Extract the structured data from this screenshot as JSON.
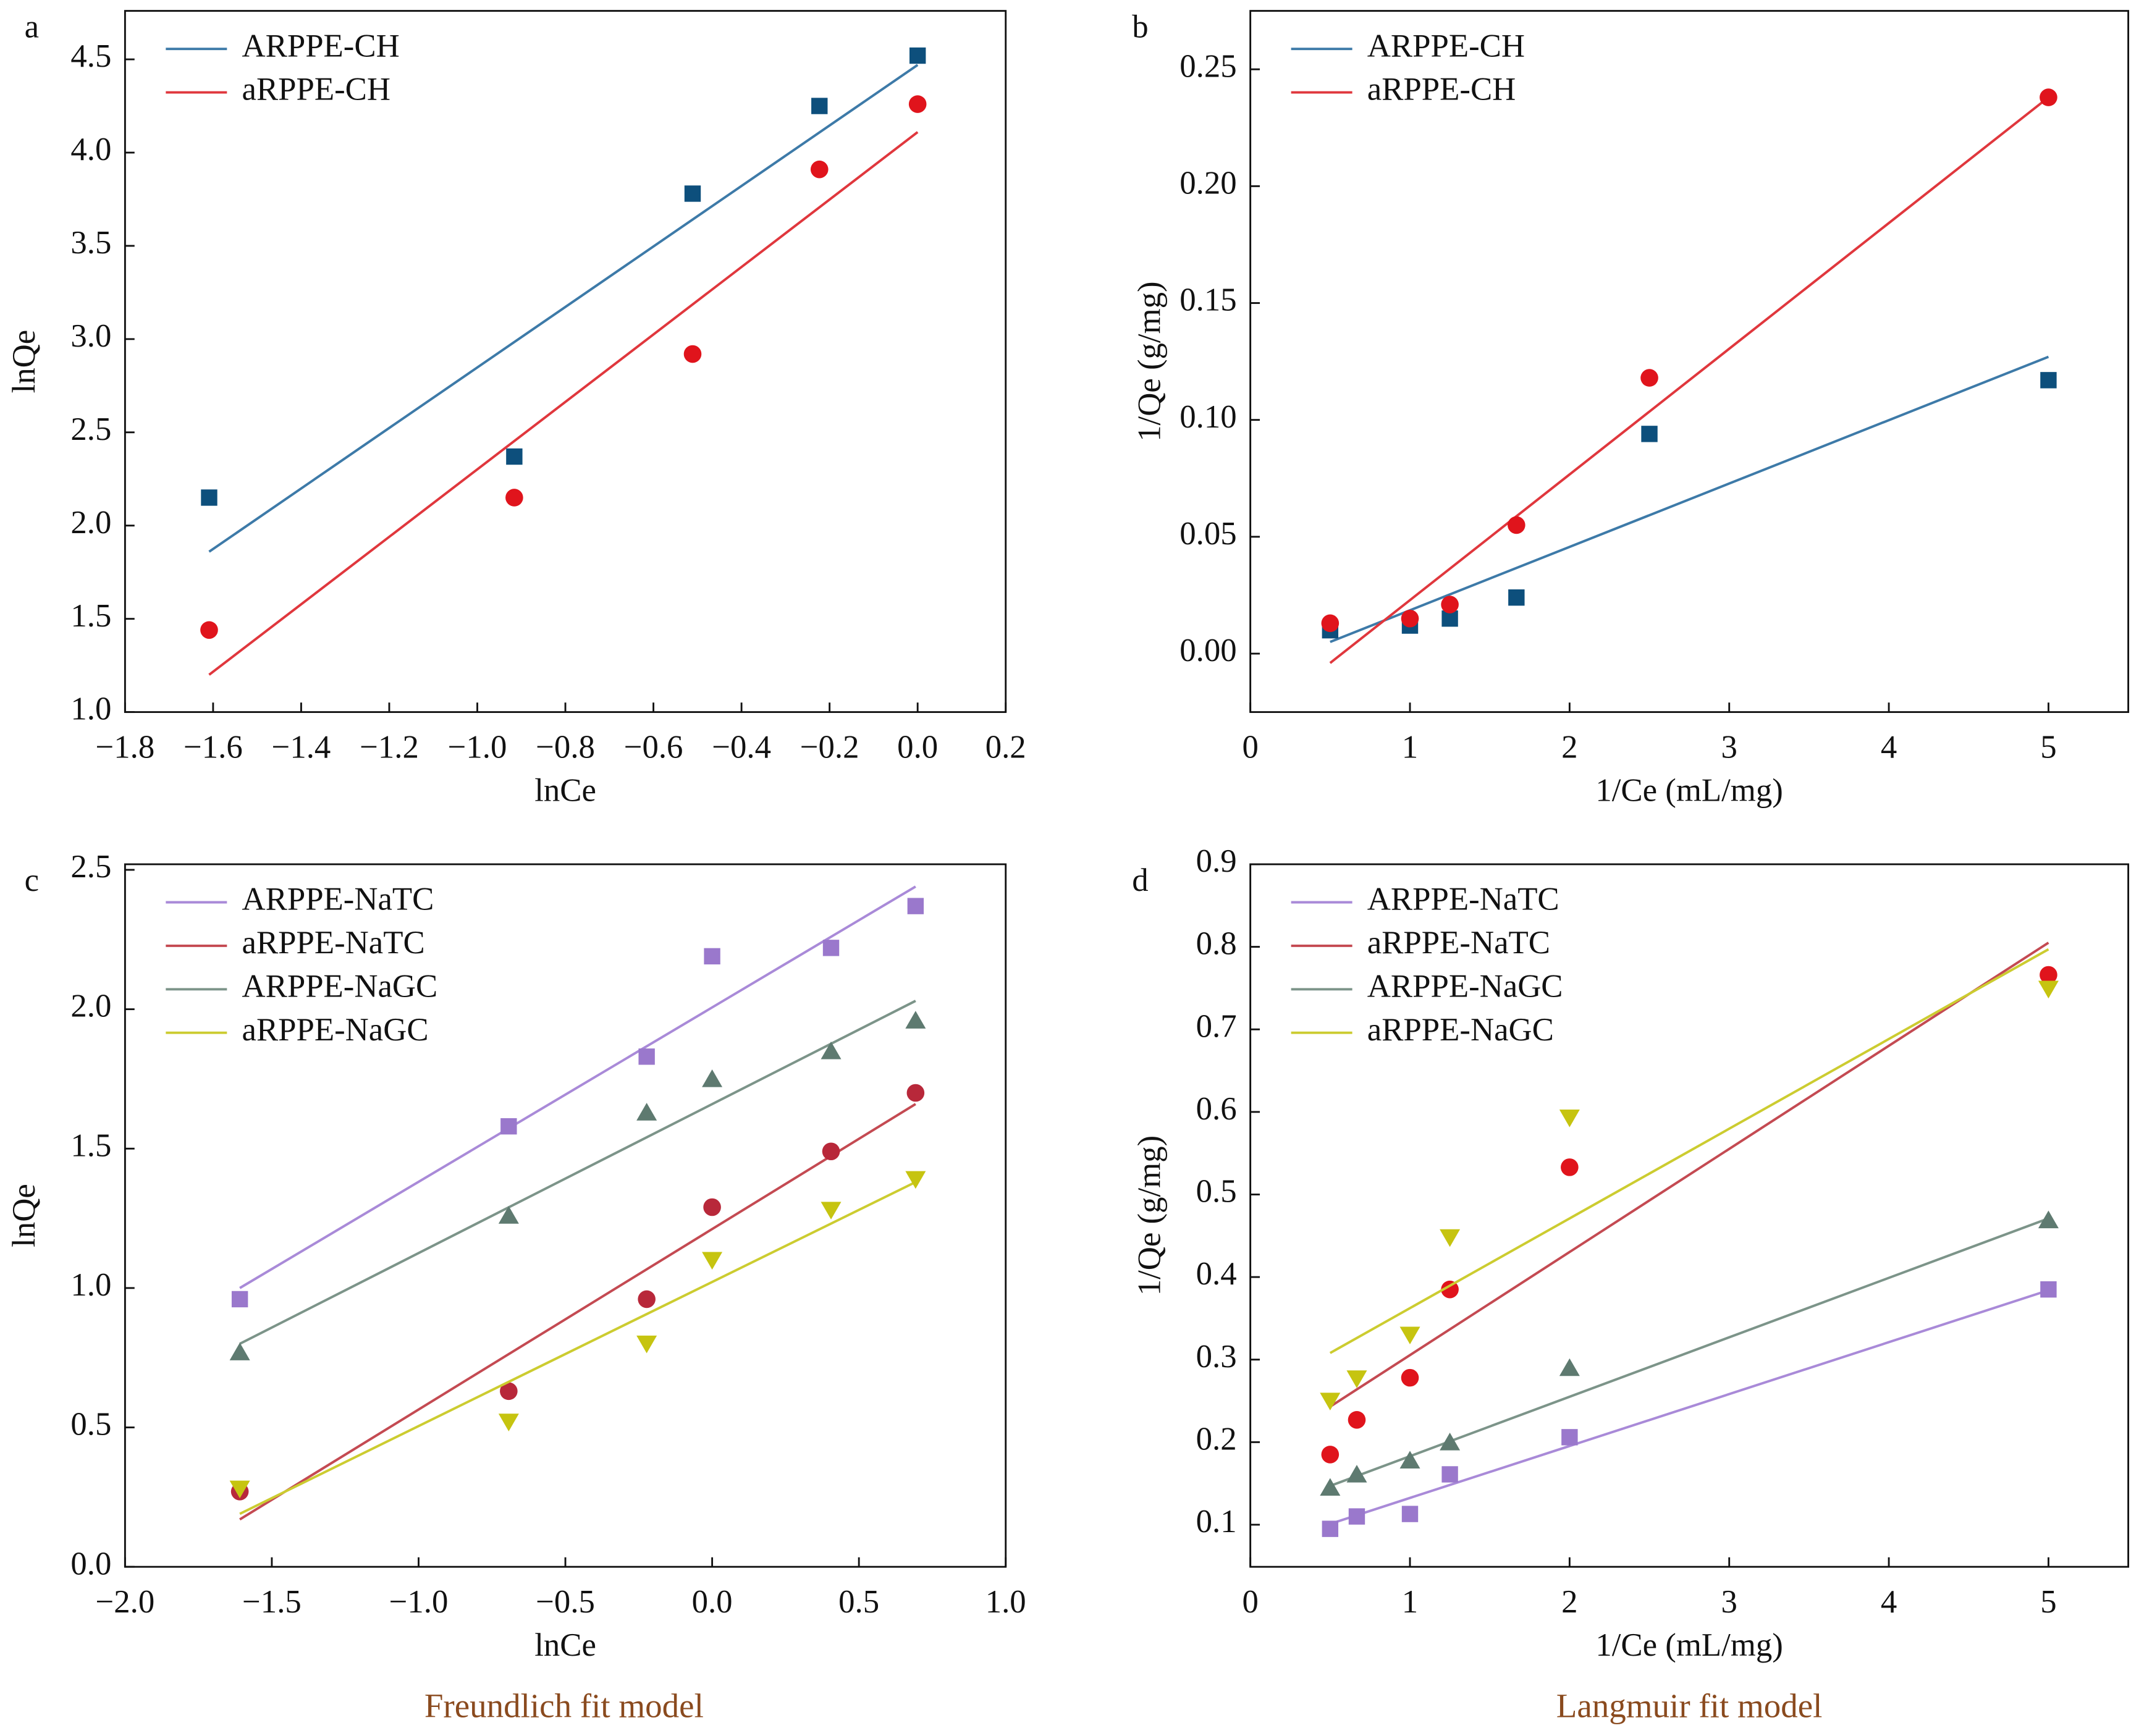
{
  "chart_data": [
    {
      "type": "scatter",
      "label": "a",
      "xlabel": "lnCe",
      "ylabel": "lnQe",
      "xlim": [
        -1.8,
        0.2
      ],
      "ylim": [
        1.0,
        4.76
      ],
      "xticks": [
        {
          "value": -1.8,
          "label": "−1.8"
        },
        {
          "value": -1.6,
          "label": "−1.6"
        },
        {
          "value": -1.4,
          "label": "−1.4"
        },
        {
          "value": -1.2,
          "label": "−1.2"
        },
        {
          "value": -1.0,
          "label": "−1.0"
        },
        {
          "value": -0.8,
          "label": "−0.8"
        },
        {
          "value": -0.6,
          "label": "−0.6"
        },
        {
          "value": -0.4,
          "label": "−0.4"
        },
        {
          "value": -0.2,
          "label": "−0.2"
        },
        {
          "value": 0,
          "label": "0.0"
        },
        0.2
      ],
      "yticks": [
        {
          "value": 1,
          "label": "1.0"
        },
        1.5,
        {
          "value": 2,
          "label": "2.0"
        },
        2.5,
        {
          "value": 3,
          "label": "3.0"
        },
        3.5,
        {
          "value": 4,
          "label": "4.0"
        },
        4.5
      ],
      "x": [
        -1.609,
        -0.916,
        -0.511,
        -0.223,
        0.0
      ],
      "series": [
        {
          "name": "ARPPE-CH",
          "color": "#0d4f7c",
          "line_color": "#3d7aa8",
          "marker": "square",
          "values": [
            2.15,
            2.37,
            3.78,
            4.25,
            4.52
          ],
          "fit_x": [
            -1.609,
            0.0
          ],
          "fit_y": [
            1.86,
            4.47
          ]
        },
        {
          "name": "aRPPE-CH",
          "color": "#e0141c",
          "line_color": "#e0373d",
          "marker": "circle",
          "values": [
            1.44,
            2.15,
            2.92,
            3.91,
            4.26
          ],
          "fit_x": [
            -1.609,
            0.0
          ],
          "fit_y": [
            1.2,
            4.11
          ]
        }
      ]
    },
    {
      "type": "scatter",
      "label": "b",
      "xlabel": "1/Ce (mL/mg)",
      "ylabel": "1/Qe (g/mg)",
      "xlim": [
        0,
        5.5
      ],
      "ylim": [
        -0.025,
        0.275
      ],
      "xticks": [
        0,
        1,
        2,
        3,
        4,
        5
      ],
      "yticks": [
        {
          "value": 0,
          "label": "0.00"
        },
        0.05,
        {
          "value": 0.1,
          "label": "0.10"
        },
        0.15,
        {
          "value": 0.2,
          "label": "0.20"
        },
        0.25
      ],
      "x": [
        0.5,
        1,
        1.25,
        1.667,
        2.5,
        5
      ],
      "series": [
        {
          "name": "ARPPE-CH",
          "color": "#0d4f7c",
          "line_color": "#3d7aa8",
          "marker": "square",
          "values": [
            0.01,
            0.012,
            0.015,
            0.024,
            0.094,
            0.117
          ],
          "fit_x": [
            0.5,
            5
          ],
          "fit_y": [
            0.005,
            0.127
          ]
        },
        {
          "name": "aRPPE-CH",
          "color": "#e0141c",
          "line_color": "#e0373d",
          "marker": "circle",
          "values": [
            0.013,
            0.015,
            0.021,
            0.055,
            0.118,
            0.238
          ],
          "fit_x": [
            0.5,
            5
          ],
          "fit_y": [
            -0.004,
            0.238
          ]
        }
      ]
    },
    {
      "type": "scatter",
      "label": "c",
      "xlabel": "lnCe",
      "ylabel": "lnQe",
      "xlim": [
        -2.0,
        1.0
      ],
      "ylim": [
        0,
        2.52
      ],
      "xticks": [
        {
          "value": -2,
          "label": "−2.0"
        },
        {
          "value": -1.5,
          "label": "−1.5"
        },
        {
          "value": -1,
          "label": "−1.0"
        },
        {
          "value": -0.5,
          "label": "−0.5"
        },
        {
          "value": 0,
          "label": "0.0"
        },
        0.5,
        {
          "value": 1,
          "label": "1.0"
        }
      ],
      "yticks": [
        {
          "value": 0,
          "label": "0.0"
        },
        0.5,
        {
          "value": 1,
          "label": "1.0"
        },
        1.5,
        {
          "value": 2,
          "label": "2.0"
        },
        2.5
      ],
      "x": [
        -1.609,
        -0.693,
        -0.223,
        0,
        0.405,
        0.693
      ],
      "series": [
        {
          "name": "ARPPE-NaTC",
          "color": "#9a78cc",
          "line_color": "#a98ad8",
          "marker": "square",
          "values": [
            0.96,
            1.58,
            1.83,
            2.19,
            2.22,
            2.37
          ],
          "fit_x": [
            -1.609,
            0.693
          ],
          "fit_y": [
            1.0,
            2.44
          ]
        },
        {
          "name": "aRPPE-NaTC",
          "color": "#b8283a",
          "line_color": "#c44a52",
          "marker": "circle",
          "values": [
            0.27,
            0.63,
            0.96,
            1.29,
            1.49,
            1.7
          ],
          "fit_x": [
            -1.609,
            0.693
          ],
          "fit_y": [
            0.17,
            1.66
          ]
        },
        {
          "name": "ARPPE-NaGC",
          "color": "#5e7a70",
          "line_color": "#7c9489",
          "marker": "triangle",
          "values": [
            0.77,
            1.26,
            1.63,
            1.75,
            1.85,
            1.96
          ],
          "fit_x": [
            -1.609,
            0.693
          ],
          "fit_y": [
            0.8,
            2.03
          ]
        },
        {
          "name": "aRPPE-NaGC",
          "color": "#c6c410",
          "line_color": "#cccc30",
          "marker": "triangle-down",
          "values": [
            0.28,
            0.52,
            0.8,
            1.1,
            1.28,
            1.39
          ],
          "fit_x": [
            -1.609,
            0.693
          ],
          "fit_y": [
            0.19,
            1.38
          ]
        }
      ]
    },
    {
      "type": "scatter",
      "label": "d",
      "xlabel": "1/Ce (mL/mg)",
      "ylabel": "1/Qe (g/mg)",
      "xlim": [
        0,
        5.5
      ],
      "ylim": [
        0.049,
        0.9
      ],
      "xticks": [
        0,
        1,
        2,
        3,
        4,
        5
      ],
      "yticks": [
        0.1,
        0.2,
        0.3,
        0.4,
        0.5,
        0.6,
        0.7,
        0.8,
        0.9
      ],
      "x": [
        0.5,
        0.667,
        1,
        1.25,
        2,
        5
      ],
      "series": [
        {
          "name": "ARPPE-NaTC",
          "color": "#9a78cc",
          "line_color": "#a98ad8",
          "marker": "square",
          "values": [
            0.095,
            0.11,
            0.113,
            0.161,
            0.206,
            0.385
          ],
          "fit_x": [
            0.5,
            5
          ],
          "fit_y": [
            0.101,
            0.384
          ]
        },
        {
          "name": "aRPPE-NaTC",
          "color": "#e0141c",
          "line_color": "#c44a52",
          "marker": "circle",
          "values": [
            0.185,
            0.227,
            0.278,
            0.385,
            0.533,
            0.766
          ],
          "fit_x": [
            0.5,
            5
          ],
          "fit_y": [
            0.243,
            0.805
          ]
        },
        {
          "name": "ARPPE-NaGC",
          "color": "#5e7a70",
          "line_color": "#7c9489",
          "marker": "triangle",
          "values": [
            0.145,
            0.161,
            0.178,
            0.2,
            0.29,
            0.469
          ],
          "fit_x": [
            0.5,
            5
          ],
          "fit_y": [
            0.147,
            0.471
          ]
        },
        {
          "name": "aRPPE-NaGC",
          "color": "#c6c410",
          "line_color": "#cccc30",
          "marker": "triangle-down",
          "values": [
            0.25,
            0.277,
            0.33,
            0.448,
            0.593,
            0.749
          ],
          "fit_x": [
            0.5,
            5
          ],
          "fit_y": [
            0.308,
            0.797
          ]
        }
      ]
    }
  ],
  "captions": [
    "Freundlich fit model",
    "Langmuir fit model"
  ]
}
